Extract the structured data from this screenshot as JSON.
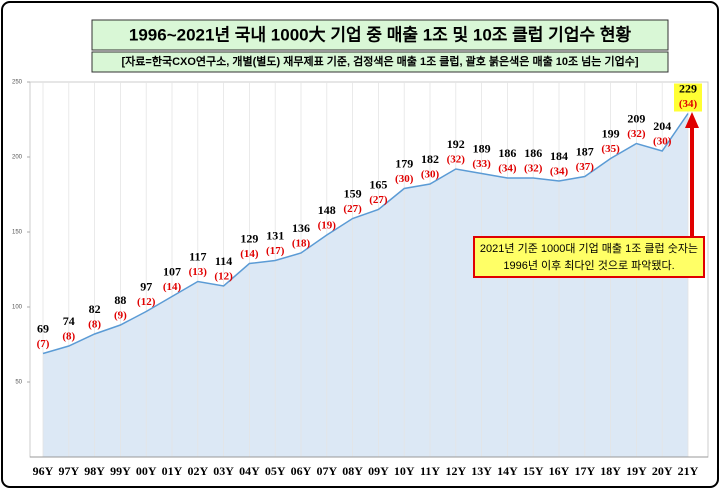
{
  "chart_data": {
    "type": "area",
    "title": "1996~2021년 국내 1000大 기업 중 매출 1조 및 10조 클럽 기업수 현황",
    "subtitle": "[자료=한국CXO연구소, 개별(별도) 재무제표 기준, 검정색은 매출 1조 클럽, 괄호 붉은색은 매출 10조 넘는 기업수]",
    "annotation": [
      "2021년 기준 1000대 기업 매출 1조 클럽 숫자는",
      "1996년 이후 최다인 것으로 파악됐다."
    ],
    "categories": [
      "96Y",
      "97Y",
      "98Y",
      "99Y",
      "00Y",
      "01Y",
      "02Y",
      "03Y",
      "04Y",
      "05Y",
      "06Y",
      "07Y",
      "08Y",
      "09Y",
      "10Y",
      "11Y",
      "12Y",
      "13Y",
      "14Y",
      "15Y",
      "16Y",
      "17Y",
      "18Y",
      "19Y",
      "20Y",
      "21Y"
    ],
    "series": [
      {
        "color": "#5b9bd5",
        "values": [
          69,
          74,
          82,
          88,
          97,
          107,
          117,
          114,
          129,
          131,
          136,
          148,
          159,
          165,
          179,
          182,
          192,
          189,
          186,
          186,
          184,
          187,
          199,
          209,
          204,
          229
        ]
      },
      {
        "color": "#e00000",
        "values": [
          7,
          8,
          8,
          9,
          12,
          14,
          13,
          12,
          14,
          17,
          18,
          19,
          27,
          27,
          30,
          30,
          32,
          33,
          34,
          32,
          34,
          37,
          35,
          32,
          30,
          34
        ],
        "value_labels": [
          "(7)",
          "(8)",
          "(8)",
          "(9)",
          "(12)",
          "(14)",
          "(13)",
          "(12)",
          "(14)",
          "(17)",
          "(18)",
          "(19)",
          "(27)",
          "(27)",
          "(30)",
          "(30)",
          "(32)",
          "(33)",
          "(34)",
          "(32)",
          "(34)",
          "(37)",
          "(35)",
          "(32)",
          "(30)",
          "(34)"
        ]
      }
    ],
    "ylim": [
      0,
      250
    ],
    "yticks": [
      50,
      100,
      150,
      200,
      250
    ],
    "grid": true
  }
}
